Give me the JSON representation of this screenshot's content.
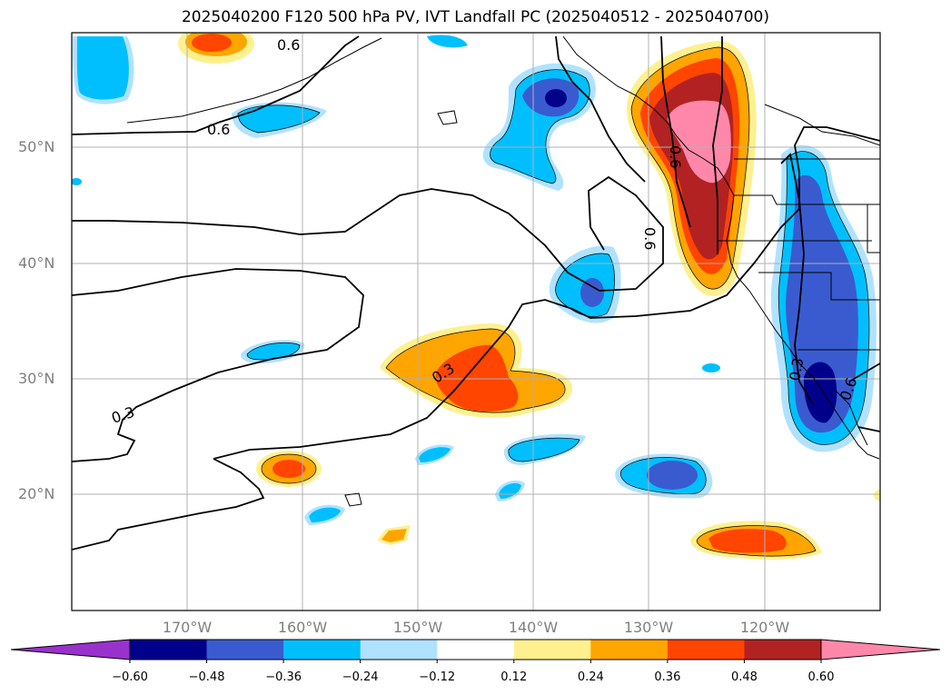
{
  "title": "2025040200 F120 500 hPa PV, IVT Landfall PC (2025040512 - 2025040700)",
  "map": {
    "extent": {
      "lon_min": -180,
      "lon_max": -110,
      "lat_min": 10,
      "lat_max": 60
    },
    "lat_labels": [
      {
        "lat": 50,
        "text": "50°N"
      },
      {
        "lat": 40,
        "text": "40°N"
      },
      {
        "lat": 30,
        "text": "30°N"
      },
      {
        "lat": 20,
        "text": "20°N"
      }
    ],
    "lon_labels": [
      {
        "lon": -170,
        "text": "170°W"
      },
      {
        "lon": -160,
        "text": "160°W"
      },
      {
        "lon": -150,
        "text": "150°W"
      },
      {
        "lon": -140,
        "text": "140°W"
      },
      {
        "lon": -130,
        "text": "130°W"
      },
      {
        "lon": -120,
        "text": "120°W"
      }
    ],
    "grid": true,
    "pv_contour_labels": [
      "0.6",
      "0.6",
      "0.3",
      "0.3",
      "0.3",
      "0.6",
      "0.6",
      "0.6"
    ]
  },
  "colorbar": {
    "ticks": [
      "−0.60",
      "−0.48",
      "−0.36",
      "−0.24",
      "−0.12",
      "0.12",
      "0.24",
      "0.36",
      "0.48",
      "0.60"
    ],
    "colors": [
      "#9932cc",
      "#00008b",
      "#3a5bd0",
      "#00bfff",
      "#b0e2ff",
      "#ffffff",
      "#fff08f",
      "#ffa500",
      "#ff4500",
      "#b22222",
      "#ff88aa"
    ],
    "extend": "both"
  }
}
